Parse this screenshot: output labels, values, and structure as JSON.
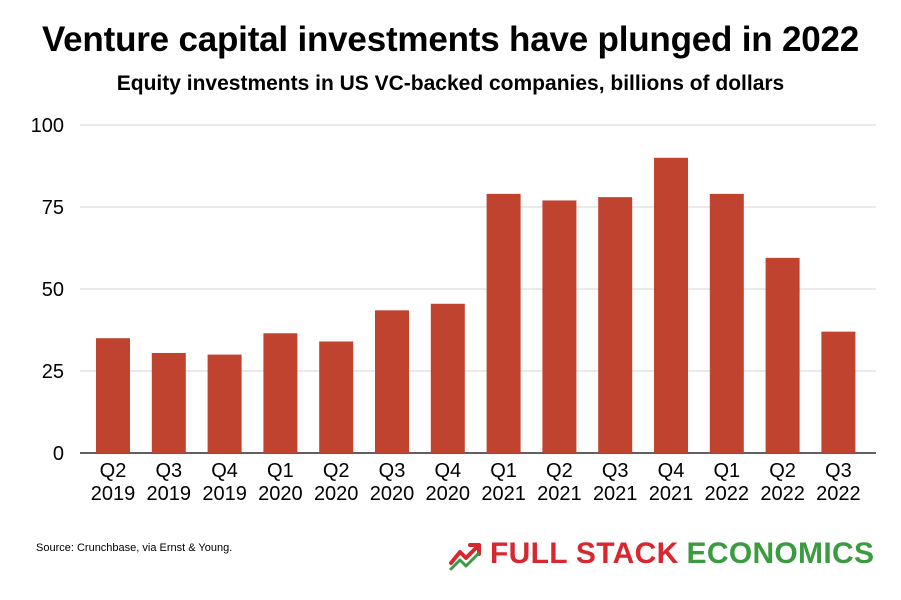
{
  "chart_data": {
    "type": "bar",
    "title": "Venture capital investments have plunged in 2022",
    "subtitle": "Equity investments in US VC-backed companies, billions of dollars",
    "categories": [
      [
        "Q2",
        "2019"
      ],
      [
        "Q3",
        "2019"
      ],
      [
        "Q4",
        "2019"
      ],
      [
        "Q1",
        "2020"
      ],
      [
        "Q2",
        "2020"
      ],
      [
        "Q3",
        "2020"
      ],
      [
        "Q4",
        "2020"
      ],
      [
        "Q1",
        "2021"
      ],
      [
        "Q2",
        "2021"
      ],
      [
        "Q3",
        "2021"
      ],
      [
        "Q4",
        "2021"
      ],
      [
        "Q1",
        "2022"
      ],
      [
        "Q2",
        "2022"
      ],
      [
        "Q3",
        "2022"
      ]
    ],
    "values": [
      35,
      30.5,
      30,
      36.5,
      34,
      43.5,
      45.5,
      79,
      77,
      78,
      90,
      79,
      59.5,
      37
    ],
    "ylim": [
      0,
      100
    ],
    "yticks": [
      0,
      25,
      50,
      75,
      100
    ],
    "grid": true,
    "xlabel": "",
    "ylabel": "",
    "bar_color": "#c0432f",
    "grid_color": "#d4d4d4"
  },
  "footer": {
    "source": "Source: Crunchbase, via Ernst & Young.",
    "brand_word_1": "FULL STACK",
    "brand_word_2": "ECONOMICS",
    "brand_icon": "trending-up-icon",
    "brand_red": "#d7282f",
    "brand_green": "#3a9b41"
  }
}
